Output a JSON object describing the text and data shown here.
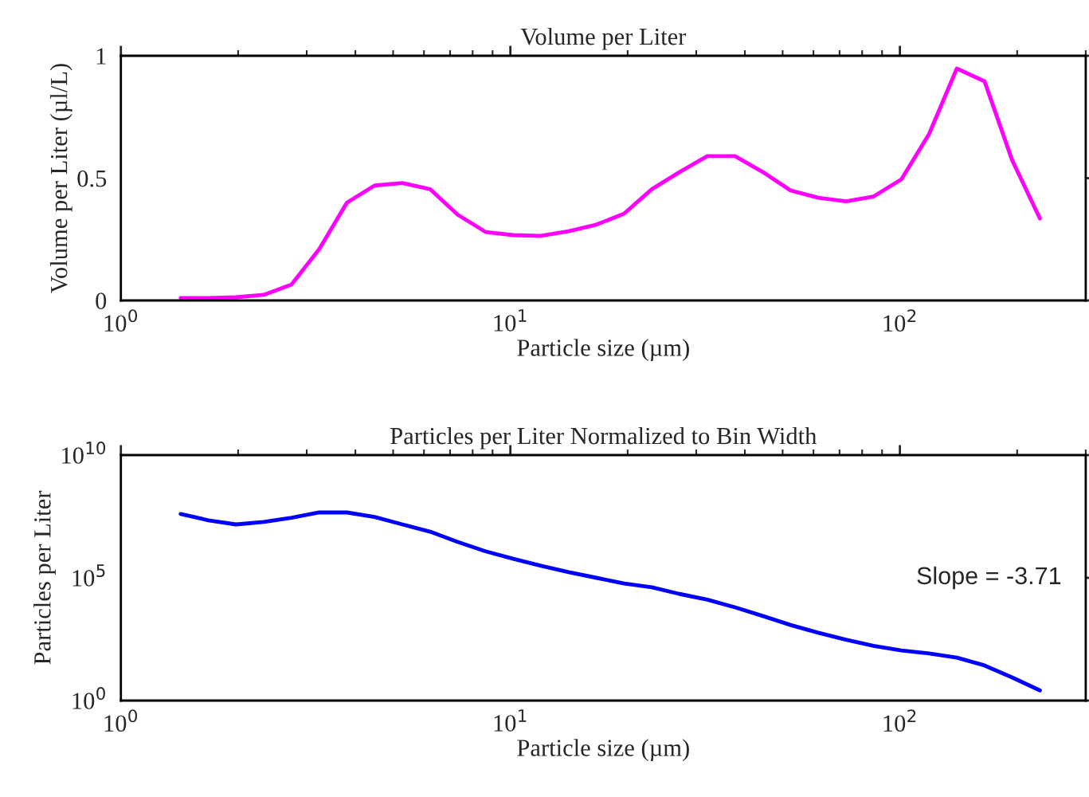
{
  "chart_data": [
    {
      "type": "line",
      "title": "Volume per Liter",
      "xlabel": "Particle size (µm)",
      "ylabel": "Volume per Liter (µl/L)",
      "log": "x",
      "grid": false,
      "legend": false,
      "xlim": [
        1,
        300
      ],
      "xticks": [
        {
          "value": 1,
          "label": "10$^{0}$"
        },
        {
          "value": 10,
          "label": "10$^{1}$"
        },
        {
          "value": 100,
          "label": "10$^{2}$"
        }
      ],
      "ylim": [
        0,
        1
      ],
      "yticks": [
        0,
        0.5,
        1
      ],
      "x": [
        1.424,
        1.677,
        1.975,
        2.327,
        2.742,
        3.231,
        3.805,
        4.482,
        5.281,
        6.221,
        7.328,
        8.636,
        10.17,
        11.98,
        14.11,
        16.63,
        19.59,
        23.08,
        27.19,
        32.03,
        37.73,
        44.46,
        52.36,
        61.69,
        72.68,
        85.6,
        100.9,
        118.8,
        140.0,
        164.9,
        194.2,
        228.8
      ],
      "series": [
        {
          "color": "#ff00ff",
          "values": [
            0.01,
            0.01,
            0.013,
            0.023,
            0.065,
            0.21,
            0.4,
            0.47,
            0.48,
            0.455,
            0.35,
            0.28,
            0.267,
            0.264,
            0.283,
            0.31,
            0.355,
            0.455,
            0.525,
            0.59,
            0.59,
            0.525,
            0.45,
            0.42,
            0.405,
            0.425,
            0.495,
            0.68,
            0.948,
            0.896,
            0.573,
            0.335
          ]
        }
      ]
    },
    {
      "type": "line",
      "title": "Particles per Liter Normalized to Bin Width",
      "xlabel": "Particle size (µm)",
      "ylabel": "Particles per Liter",
      "log": "xy",
      "grid": false,
      "legend": false,
      "xlim": [
        1,
        300
      ],
      "xticks": [
        {
          "value": 1,
          "label": "10$^{0}$"
        },
        {
          "value": 10,
          "label": "10$^{1}$"
        },
        {
          "value": 100,
          "label": "10$^{2}$"
        }
      ],
      "ylim": [
        1,
        10000000000
      ],
      "yticks": [
        {
          "value": 1,
          "label": "10$^{0}$"
        },
        {
          "value": 100000,
          "label": "10$^{5}$"
        },
        {
          "value": 10000000000,
          "label": "10$^{10}$"
        }
      ],
      "annotations": [
        "Slope = -3.71"
      ],
      "x": [
        1.424,
        1.677,
        1.975,
        2.327,
        2.742,
        3.231,
        3.805,
        4.482,
        5.281,
        6.221,
        7.328,
        8.636,
        10.17,
        11.98,
        14.11,
        16.63,
        19.59,
        23.08,
        27.19,
        32.03,
        37.73,
        44.46,
        52.36,
        61.69,
        72.68,
        85.6,
        100.9,
        118.8,
        140.0,
        164.9,
        194.2,
        228.8
      ],
      "series": [
        {
          "color": "#0000ff",
          "values": [
            40000000,
            22000000,
            15000000,
            19000000,
            28000000,
            46000000,
            46000000,
            30000000,
            15000000,
            7600000,
            2900000,
            1200000,
            600000,
            310000,
            170000,
            100000,
            59000,
            41000,
            22000,
            13000,
            6300,
            2800,
            1200,
            580,
            300,
            170,
            110,
            83,
            56,
            27,
            8.7,
            2.6
          ]
        }
      ]
    }
  ]
}
